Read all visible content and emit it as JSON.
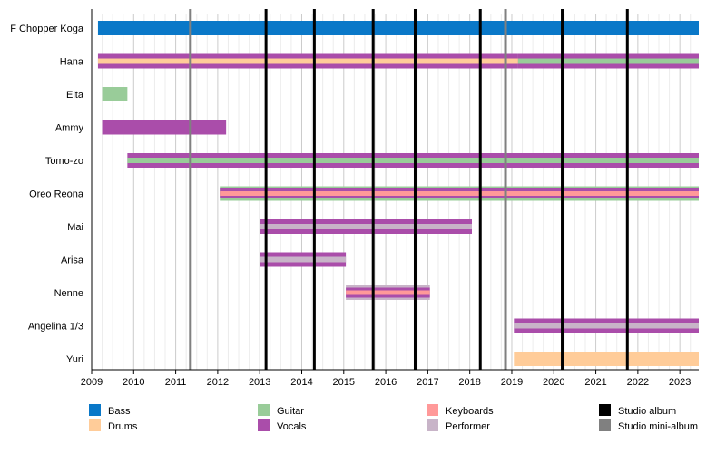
{
  "chart_data": {
    "type": "timeline",
    "x_axis": {
      "range": [
        2009.0,
        2023.45
      ],
      "ticks": [
        "2009",
        "2010",
        "2011",
        "2012",
        "2013",
        "2014",
        "2015",
        "2016",
        "2017",
        "2018",
        "2019",
        "2020",
        "2021",
        "2022",
        "2023"
      ]
    },
    "roles": {
      "Bass": "#0a78c8",
      "Drums": "#ffcc99",
      "Guitar": "#99cc99",
      "Vocals": "#aa4daa",
      "Keyboards": "#ff9999",
      "Performer": "#c8b4c8"
    },
    "members": [
      {
        "name": "F Chopper Koga",
        "segments": [
          {
            "start": 2009.15,
            "end": 2023.45,
            "roles": [
              "Bass"
            ]
          }
        ]
      },
      {
        "name": "Hana",
        "segments": [
          {
            "start": 2009.15,
            "end": 2019.15,
            "roles": [
              "Vocals",
              "Drums"
            ]
          },
          {
            "start": 2019.15,
            "end": 2023.45,
            "roles": [
              "Vocals",
              "Guitar"
            ]
          }
        ]
      },
      {
        "name": "Eita",
        "segments": [
          {
            "start": 2009.25,
            "end": 2009.85,
            "roles": [
              "Guitar"
            ]
          }
        ]
      },
      {
        "name": "Ammy",
        "segments": [
          {
            "start": 2009.25,
            "end": 2012.2,
            "roles": [
              "Vocals"
            ]
          }
        ]
      },
      {
        "name": "Tomo-zo",
        "segments": [
          {
            "start": 2009.85,
            "end": 2023.45,
            "roles": [
              "Vocals",
              "Guitar"
            ]
          }
        ]
      },
      {
        "name": "Oreo Reona",
        "segments": [
          {
            "start": 2012.05,
            "end": 2023.45,
            "roles": [
              "Vocals",
              "Keyboards",
              "Guitar"
            ]
          }
        ]
      },
      {
        "name": "Mai",
        "segments": [
          {
            "start": 2013.0,
            "end": 2018.05,
            "roles": [
              "Vocals",
              "Performer"
            ]
          }
        ]
      },
      {
        "name": "Arisa",
        "segments": [
          {
            "start": 2013.0,
            "end": 2015.05,
            "roles": [
              "Vocals",
              "Performer"
            ]
          }
        ]
      },
      {
        "name": "Nenne",
        "segments": [
          {
            "start": 2015.05,
            "end": 2017.05,
            "roles": [
              "Vocals",
              "Keyboards",
              "Performer"
            ]
          }
        ]
      },
      {
        "name": "Angelina 1/3",
        "segments": [
          {
            "start": 2019.05,
            "end": 2023.45,
            "roles": [
              "Vocals",
              "Performer"
            ]
          }
        ]
      },
      {
        "name": "Yuri",
        "segments": [
          {
            "start": 2019.05,
            "end": 2023.45,
            "roles": [
              "Drums"
            ]
          }
        ]
      }
    ],
    "releases": {
      "Studio album": {
        "color": "#000000",
        "dates": [
          2013.15,
          2014.3,
          2015.7,
          2016.7,
          2018.25,
          2020.2,
          2021.75
        ]
      },
      "Studio mini-album": {
        "color": "#808080",
        "dates": [
          2011.35,
          2018.85
        ]
      }
    },
    "legend": [
      {
        "label": "Bass",
        "color": "#0a78c8"
      },
      {
        "label": "Drums",
        "color": "#ffcc99"
      },
      {
        "label": "Guitar",
        "color": "#99cc99"
      },
      {
        "label": "Vocals",
        "color": "#aa4daa"
      },
      {
        "label": "Keyboards",
        "color": "#ff9999"
      },
      {
        "label": "Performer",
        "color": "#c8b4c8"
      },
      {
        "label": "Studio album",
        "color": "#000000"
      },
      {
        "label": "Studio mini-album",
        "color": "#808080"
      }
    ]
  }
}
